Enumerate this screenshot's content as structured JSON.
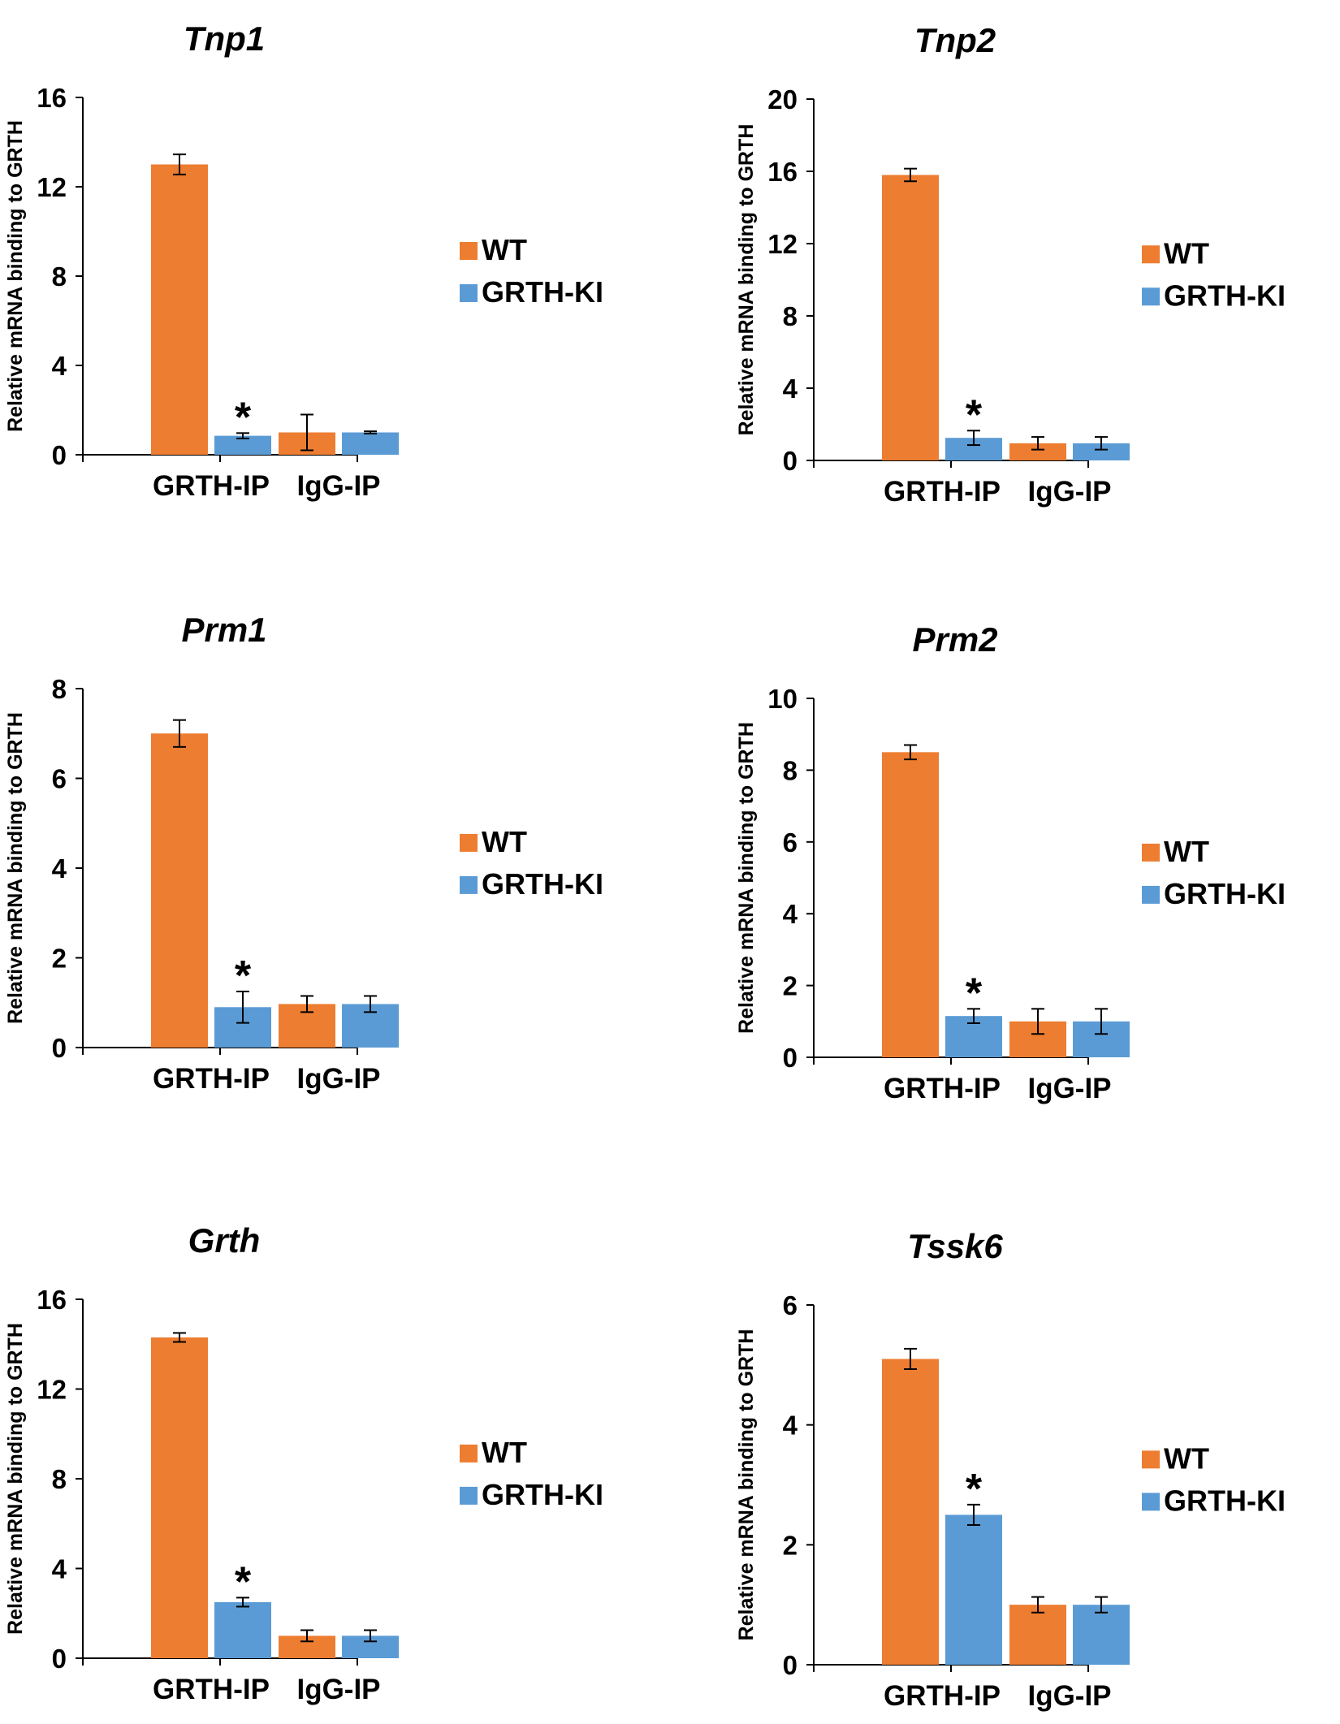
{
  "legend": {
    "wt": "WT",
    "ki": "GRTH-KI"
  },
  "colors": {
    "wt": "#ED7D31",
    "ki": "#5B9BD5",
    "axis": "#000000",
    "text": "#000000"
  },
  "chart_data": [
    {
      "type": "bar",
      "title": "Tnp1",
      "xlabel": "",
      "ylabel": "Relative mRNA binding to GRTH",
      "categories": [
        "GRTH-IP",
        "IgG-IP"
      ],
      "ylim": [
        0,
        16
      ],
      "yticks": [
        0,
        4,
        8,
        12,
        16
      ],
      "series": [
        {
          "name": "WT",
          "values": [
            13.0,
            1.0
          ],
          "errors": [
            0.45,
            0.8
          ]
        },
        {
          "name": "GRTH-KI",
          "values": [
            0.85,
            1.0
          ],
          "errors": [
            0.12,
            0.05
          ]
        }
      ],
      "annotations": [
        {
          "text": "*",
          "category": "GRTH-IP",
          "series": "GRTH-KI"
        }
      ],
      "legend_position": "right"
    },
    {
      "type": "bar",
      "title": "Tnp2",
      "xlabel": "",
      "ylabel": "Relative mRNA binding to GRTH",
      "categories": [
        "GRTH-IP",
        "IgG-IP"
      ],
      "ylim": [
        0,
        20
      ],
      "yticks": [
        0,
        4,
        8,
        12,
        16,
        20
      ],
      "series": [
        {
          "name": "WT",
          "values": [
            15.8,
            0.95
          ],
          "errors": [
            0.35,
            0.35
          ]
        },
        {
          "name": "GRTH-KI",
          "values": [
            1.25,
            0.95
          ],
          "errors": [
            0.4,
            0.35
          ]
        }
      ],
      "annotations": [
        {
          "text": "*",
          "category": "GRTH-IP",
          "series": "GRTH-KI"
        }
      ],
      "legend_position": "right"
    },
    {
      "type": "bar",
      "title": "Prm1",
      "xlabel": "",
      "ylabel": "Relative mRNA binding to GRTH",
      "categories": [
        "GRTH-IP",
        "IgG-IP"
      ],
      "ylim": [
        0,
        8
      ],
      "yticks": [
        0,
        2,
        4,
        6,
        8
      ],
      "series": [
        {
          "name": "WT",
          "values": [
            7.0,
            0.97
          ],
          "errors": [
            0.3,
            0.18
          ]
        },
        {
          "name": "GRTH-KI",
          "values": [
            0.9,
            0.97
          ],
          "errors": [
            0.35,
            0.18
          ]
        }
      ],
      "annotations": [
        {
          "text": "*",
          "category": "GRTH-IP",
          "series": "GRTH-KI"
        }
      ],
      "legend_position": "right"
    },
    {
      "type": "bar",
      "title": "Prm2",
      "xlabel": "",
      "ylabel": "Relative mRNA binding to GRTH",
      "categories": [
        "GRTH-IP",
        "IgG-IP"
      ],
      "ylim": [
        0,
        10
      ],
      "yticks": [
        0,
        2,
        4,
        6,
        8,
        10
      ],
      "series": [
        {
          "name": "WT",
          "values": [
            8.5,
            1.0
          ],
          "errors": [
            0.2,
            0.35
          ]
        },
        {
          "name": "GRTH-KI",
          "values": [
            1.15,
            1.0
          ],
          "errors": [
            0.2,
            0.35
          ]
        }
      ],
      "annotations": [
        {
          "text": "*",
          "category": "GRTH-IP",
          "series": "GRTH-KI"
        }
      ],
      "legend_position": "right"
    },
    {
      "type": "bar",
      "title": "Grth",
      "xlabel": "",
      "ylabel": "Relative mRNA binding to GRTH",
      "categories": [
        "GRTH-IP",
        "IgG-IP"
      ],
      "ylim": [
        0,
        16
      ],
      "yticks": [
        0,
        4,
        8,
        12,
        16
      ],
      "series": [
        {
          "name": "WT",
          "values": [
            14.3,
            1.0
          ],
          "errors": [
            0.2,
            0.25
          ]
        },
        {
          "name": "GRTH-KI",
          "values": [
            2.5,
            1.0
          ],
          "errors": [
            0.2,
            0.25
          ]
        }
      ],
      "annotations": [
        {
          "text": "*",
          "category": "GRTH-IP",
          "series": "GRTH-KI"
        }
      ],
      "legend_position": "right"
    },
    {
      "type": "bar",
      "title": "Tssk6",
      "xlabel": "",
      "ylabel": "Relative mRNA binding to GRTH",
      "categories": [
        "GRTH-IP",
        "IgG-IP"
      ],
      "ylim": [
        0,
        6
      ],
      "yticks": [
        0,
        2,
        4,
        6
      ],
      "series": [
        {
          "name": "WT",
          "values": [
            5.1,
            1.0
          ],
          "errors": [
            0.17,
            0.13
          ]
        },
        {
          "name": "GRTH-KI",
          "values": [
            2.5,
            1.0
          ],
          "errors": [
            0.17,
            0.13
          ]
        }
      ],
      "annotations": [
        {
          "text": "*",
          "category": "GRTH-IP",
          "series": "GRTH-KI"
        }
      ],
      "legend_position": "right"
    }
  ]
}
